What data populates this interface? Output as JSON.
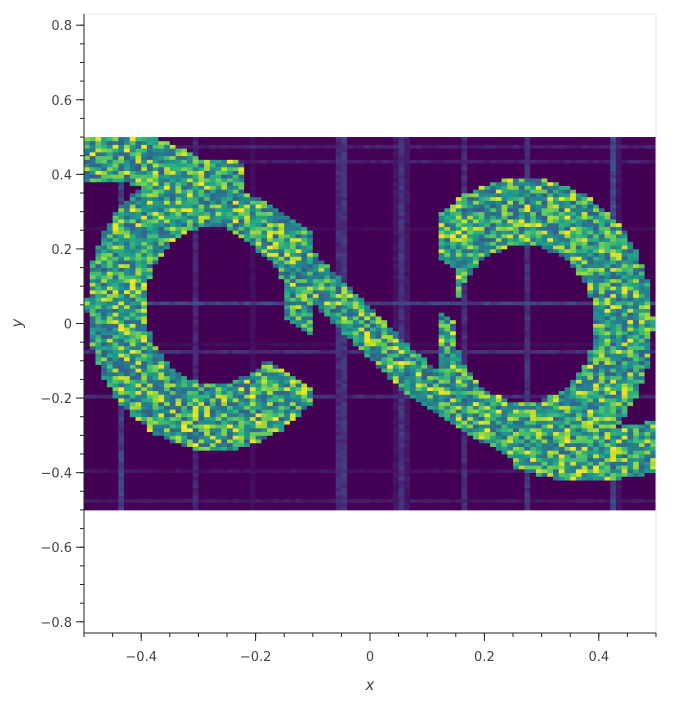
{
  "chart_data": {
    "type": "heatmap",
    "title": "",
    "xlabel": "x",
    "ylabel": "y",
    "xlim": [
      -0.5,
      0.5
    ],
    "ylim": [
      -0.83,
      0.83
    ],
    "image_extent": {
      "x": [
        -0.5,
        0.5
      ],
      "y": [
        -0.5,
        0.5
      ]
    },
    "xticks": [
      -0.4,
      -0.2,
      0,
      0.2,
      0.4
    ],
    "xtick_labels": [
      "−0.4",
      "−0.2",
      "0",
      "0.2",
      "0.4"
    ],
    "yticks": [
      0.8,
      0.6,
      0.4,
      0.2,
      0,
      -0.2,
      -0.4,
      -0.6,
      -0.8
    ],
    "ytick_labels": [
      "0.8",
      "0.6",
      "0.4",
      "0.2",
      "0",
      "−0.2",
      "−0.4",
      "−0.6",
      "−0.8"
    ],
    "colormap": "viridis",
    "background_value_color": "#440154",
    "description_of_pattern": "two interleaving S-shaped bands of bright (green/yellow) noisy pixels on a dark purple background",
    "grid": false,
    "legend": "none"
  }
}
